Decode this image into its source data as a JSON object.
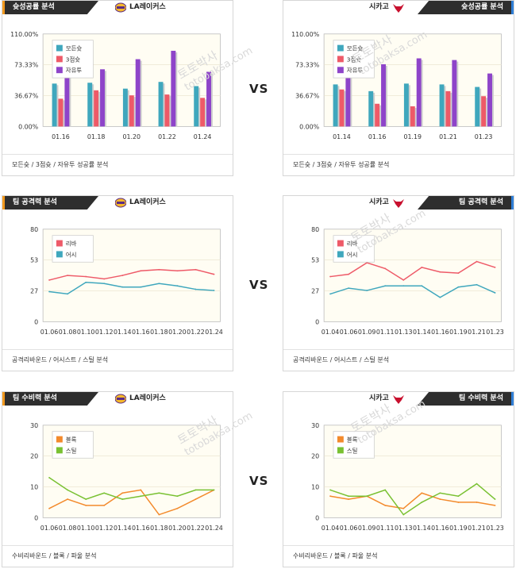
{
  "vs_label": "VS",
  "watermark": [
    "토토박사",
    "totobaksa.com"
  ],
  "colors": {
    "accent_orange": "#f39a1e",
    "accent_blue": "#2f7fd8",
    "tag_bg": "#2e2e2e",
    "plot_bg": "#fffdf3"
  },
  "panels": [
    {
      "id": "shooting-lal",
      "tag": "슛성공률 분석",
      "team": "LA레이커스",
      "logo": "lakers-logo",
      "side": "left",
      "footer": "모든슛 / 3점슛 / 자유투 성공률 분석",
      "chart_data": {
        "type": "bar",
        "categories": [
          "01.16",
          "01.18",
          "01.20",
          "01.22",
          "01.24"
        ],
        "yticks": [
          "110.00%",
          "73.33%",
          "36.67%",
          "0.00%"
        ],
        "ylim": [
          0,
          110
        ],
        "series": [
          {
            "name": "모든슛",
            "color": "#3fa7bd",
            "values": [
              51,
              52,
              45,
              53,
              48
            ]
          },
          {
            "name": "3점슛",
            "color": "#ee5a68",
            "values": [
              33,
              43,
              37,
              38,
              34
            ]
          },
          {
            "name": "자유투",
            "color": "#8e44c9",
            "values": [
              68,
              68,
              80,
              90,
              65
            ]
          }
        ]
      }
    },
    {
      "id": "shooting-chi",
      "tag": "슛성공률 분석",
      "team": "시카고",
      "logo": "bulls-logo",
      "side": "right",
      "footer": "모든슛 / 3점슛 / 자유투 성공률 분석",
      "chart_data": {
        "type": "bar",
        "categories": [
          "01.14",
          "01.16",
          "01.19",
          "01.21",
          "01.23"
        ],
        "yticks": [
          "110.00%",
          "73.33%",
          "36.67%",
          "0.00%"
        ],
        "ylim": [
          0,
          110
        ],
        "series": [
          {
            "name": "모든슛",
            "color": "#3fa7bd",
            "values": [
              50,
              42,
              51,
              50,
              47
            ]
          },
          {
            "name": "3점슛",
            "color": "#ee5a68",
            "values": [
              44,
              27,
              24,
              42,
              36
            ]
          },
          {
            "name": "자유투",
            "color": "#8e44c9",
            "values": [
              60,
              74,
              81,
              79,
              63
            ]
          }
        ]
      }
    },
    {
      "id": "attack-lal",
      "tag": "팀 공격력 분석",
      "team": "LA레이커스",
      "logo": "lakers-logo",
      "side": "left",
      "footer": "공격리바운드 / 어시스트 / 스틸 분석",
      "chart_data": {
        "type": "line",
        "x": [
          "01.06",
          "01.08",
          "01.10",
          "01.12",
          "01.14",
          "01.16",
          "01.18",
          "01.20",
          "01.22",
          "01.24"
        ],
        "yticks": [
          "80",
          "53",
          "27",
          "0"
        ],
        "ylim": [
          0,
          80
        ],
        "series": [
          {
            "name": "리바",
            "color": "#ee5a68",
            "values": [
              36,
              40,
              39,
              37,
              40,
              44,
              45,
              44,
              45,
              41
            ]
          },
          {
            "name": "어시",
            "color": "#3fa7bd",
            "values": [
              26,
              24,
              34,
              33,
              30,
              30,
              33,
              31,
              28,
              27
            ]
          }
        ]
      }
    },
    {
      "id": "attack-chi",
      "tag": "팀 공격력 분석",
      "team": "시카고",
      "logo": "bulls-logo",
      "side": "right",
      "footer": "공격리바운드 / 어시스트 / 스틸 분석",
      "chart_data": {
        "type": "line",
        "x": [
          "01.04",
          "01.06",
          "01.09",
          "01.11",
          "01.13",
          "01.14",
          "01.16",
          "01.19",
          "01.21",
          "01.23"
        ],
        "yticks": [
          "80",
          "53",
          "27",
          "0"
        ],
        "ylim": [
          0,
          80
        ],
        "series": [
          {
            "name": "리바",
            "color": "#ee5a68",
            "values": [
              39,
              41,
              51,
              46,
              36,
              47,
              43,
              42,
              52,
              47
            ]
          },
          {
            "name": "어시",
            "color": "#3fa7bd",
            "values": [
              24,
              29,
              27,
              31,
              31,
              31,
              21,
              30,
              32,
              25
            ]
          }
        ]
      }
    },
    {
      "id": "defense-lal",
      "tag": "팀 수비력 분석",
      "team": "LA레이커스",
      "logo": "lakers-logo",
      "side": "left",
      "footer": "수비리바운드 / 블록 / 파울 분석",
      "chart_data": {
        "type": "line",
        "x": [
          "01.06",
          "01.08",
          "01.10",
          "01.12",
          "01.14",
          "01.16",
          "01.18",
          "01.20",
          "01.22",
          "01.24"
        ],
        "yticks": [
          "30",
          "20",
          "10",
          "0"
        ],
        "ylim": [
          0,
          30
        ],
        "series": [
          {
            "name": "블록",
            "color": "#f38a2c",
            "values": [
              3,
              6,
              4,
              4,
              8,
              9,
              1,
              3,
              6,
              9
            ]
          },
          {
            "name": "스틸",
            "color": "#79c132",
            "values": [
              13,
              9,
              6,
              8,
              6,
              7,
              8,
              7,
              9,
              9
            ]
          }
        ]
      }
    },
    {
      "id": "defense-chi",
      "tag": "팀 수비력 분석",
      "team": "시카고",
      "logo": "bulls-logo",
      "side": "right",
      "footer": "수비리바운드 / 블록 / 파울 분석",
      "chart_data": {
        "type": "line",
        "x": [
          "01.04",
          "01.06",
          "01.09",
          "01.11",
          "01.13",
          "01.14",
          "01.16",
          "01.19",
          "01.21",
          "01.23"
        ],
        "yticks": [
          "30",
          "20",
          "10",
          "0"
        ],
        "ylim": [
          0,
          30
        ],
        "series": [
          {
            "name": "블록",
            "color": "#f38a2c",
            "values": [
              7,
              6,
              7,
              4,
              3,
              8,
              6,
              5,
              5,
              4
            ]
          },
          {
            "name": "스틸",
            "color": "#79c132",
            "values": [
              9,
              7,
              7,
              9,
              1,
              5,
              8,
              7,
              11,
              6
            ]
          }
        ]
      }
    }
  ]
}
